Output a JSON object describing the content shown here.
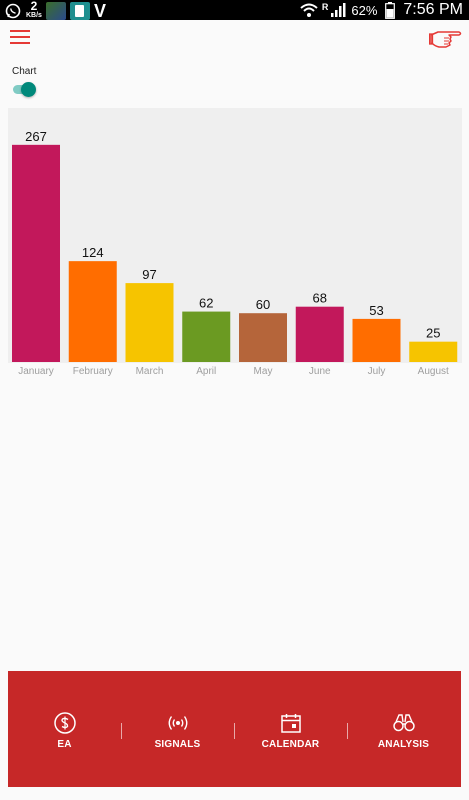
{
  "status_bar": {
    "net_speed_value": "2",
    "net_speed_unit": "KB/s",
    "v_label": "V",
    "signal_marker": "R",
    "battery": "62%",
    "time": "7:56 PM"
  },
  "toggle": {
    "label": "Chart",
    "on": true
  },
  "bottom_nav": {
    "items": [
      {
        "label": "EA",
        "icon": "dollar-coin-icon"
      },
      {
        "label": "SIGNALS",
        "icon": "broadcast-icon"
      },
      {
        "label": "CALENDAR",
        "icon": "calendar-icon"
      },
      {
        "label": "ANALYSIS",
        "icon": "binoculars-icon"
      }
    ]
  },
  "colors": {
    "accent": "#e53935",
    "nav_bg": "#c62828",
    "toggle": "#00897b"
  },
  "chart_data": {
    "type": "bar",
    "categories": [
      "January",
      "February",
      "March",
      "April",
      "May",
      "June",
      "July",
      "August"
    ],
    "values": [
      267,
      124,
      97,
      62,
      60,
      68,
      53,
      25
    ],
    "colors": [
      "#c2185b",
      "#ff6d00",
      "#f6c400",
      "#6b9a22",
      "#b5653a",
      "#c2185b",
      "#ff6d00",
      "#f6c400"
    ],
    "ylim": [
      0,
      300
    ],
    "grid": false,
    "legend": "none"
  }
}
